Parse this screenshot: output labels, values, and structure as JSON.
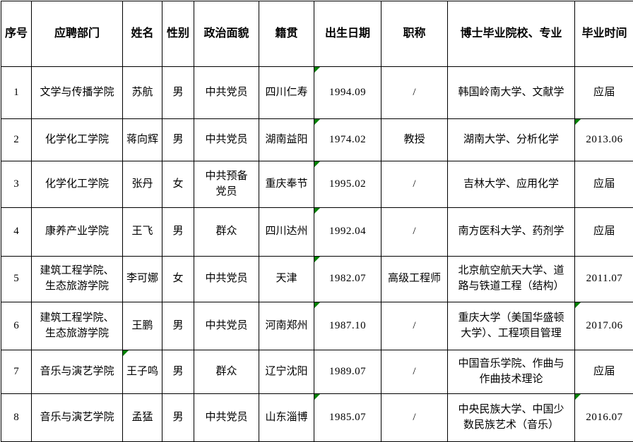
{
  "table": {
    "columns": [
      {
        "key": "seq",
        "label": "序号"
      },
      {
        "key": "dept",
        "label": "应聘部门"
      },
      {
        "key": "name",
        "label": "姓名"
      },
      {
        "key": "gender",
        "label": "性别"
      },
      {
        "key": "political",
        "label": "政治面貌"
      },
      {
        "key": "origin",
        "label": "籍贯"
      },
      {
        "key": "birth",
        "label": "出生日期"
      },
      {
        "key": "title",
        "label": "职称"
      },
      {
        "key": "school",
        "label": "博士毕业院校、专业"
      },
      {
        "key": "grad",
        "label": "毕业时间"
      }
    ],
    "rows": [
      {
        "seq": "1",
        "dept": "文学与传播学院",
        "name": "苏航",
        "gender": "男",
        "political": "中共党员",
        "origin": "四川仁寿",
        "birth": "1994.09",
        "title": "/",
        "school": "韩国岭南大学、文献学",
        "grad": "应届",
        "error_flags": [
          "birth"
        ]
      },
      {
        "seq": "2",
        "dept": "化学化工学院",
        "name": "蒋向辉",
        "gender": "男",
        "political": "中共党员",
        "origin": "湖南益阳",
        "birth": "1974.02",
        "title": "教授",
        "school": "湖南大学、分析化学",
        "grad": "2013.06",
        "error_flags": [
          "birth",
          "grad"
        ]
      },
      {
        "seq": "3",
        "dept": "化学化工学院",
        "name": "张丹",
        "gender": "女",
        "political": "中共预备党员",
        "origin": "重庆奉节",
        "birth": "1995.02",
        "title": "/",
        "school": "吉林大学、应用化学",
        "grad": "应届",
        "error_flags": [
          "birth"
        ]
      },
      {
        "seq": "4",
        "dept": "康养产业学院",
        "name": "王飞",
        "gender": "男",
        "political": "群众",
        "origin": "四川达州",
        "birth": "1992.04",
        "title": "/",
        "school": "南方医科大学、药剂学",
        "grad": "应届",
        "error_flags": [
          "birth"
        ]
      },
      {
        "seq": "5",
        "dept": "建筑工程学院、生态旅游学院",
        "name": "李可娜",
        "gender": "女",
        "political": "中共党员",
        "origin": "天津",
        "birth": "1982.07",
        "title": "高级工程师",
        "school": "北京航空航天大学、道路与铁道工程（结构）",
        "grad": "2011.07",
        "error_flags": [
          "birth"
        ]
      },
      {
        "seq": "6",
        "dept": "建筑工程学院、生态旅游学院",
        "name": "王鹏",
        "gender": "男",
        "political": "中共党员",
        "origin": "河南郑州",
        "birth": "1987.10",
        "title": "/",
        "school": "重庆大学（美国华盛顿大学）、工程项目管理",
        "grad": "2017.06",
        "error_flags": [
          "birth",
          "grad"
        ]
      },
      {
        "seq": "7",
        "dept": "音乐与演艺学院",
        "name": "王子鸣",
        "gender": "男",
        "political": "群众",
        "origin": "辽宁沈阳",
        "birth": "1989.07",
        "title": "/",
        "school": "中国音乐学院、作曲与作曲技术理论",
        "grad": "应届",
        "error_flags": [
          "name"
        ]
      },
      {
        "seq": "8",
        "dept": "音乐与演艺学院",
        "name": "孟猛",
        "gender": "男",
        "political": "中共党员",
        "origin": "山东淄博",
        "birth": "1985.07",
        "title": "/",
        "school": "中央民族大学、中国少数民族艺术（音乐）",
        "grad": "2016.07",
        "error_flags": [
          "birth",
          "grad"
        ]
      }
    ]
  },
  "colors": {
    "border": "#000000",
    "text": "#000000",
    "background": "#ffffff",
    "error_marker": "#008000"
  }
}
